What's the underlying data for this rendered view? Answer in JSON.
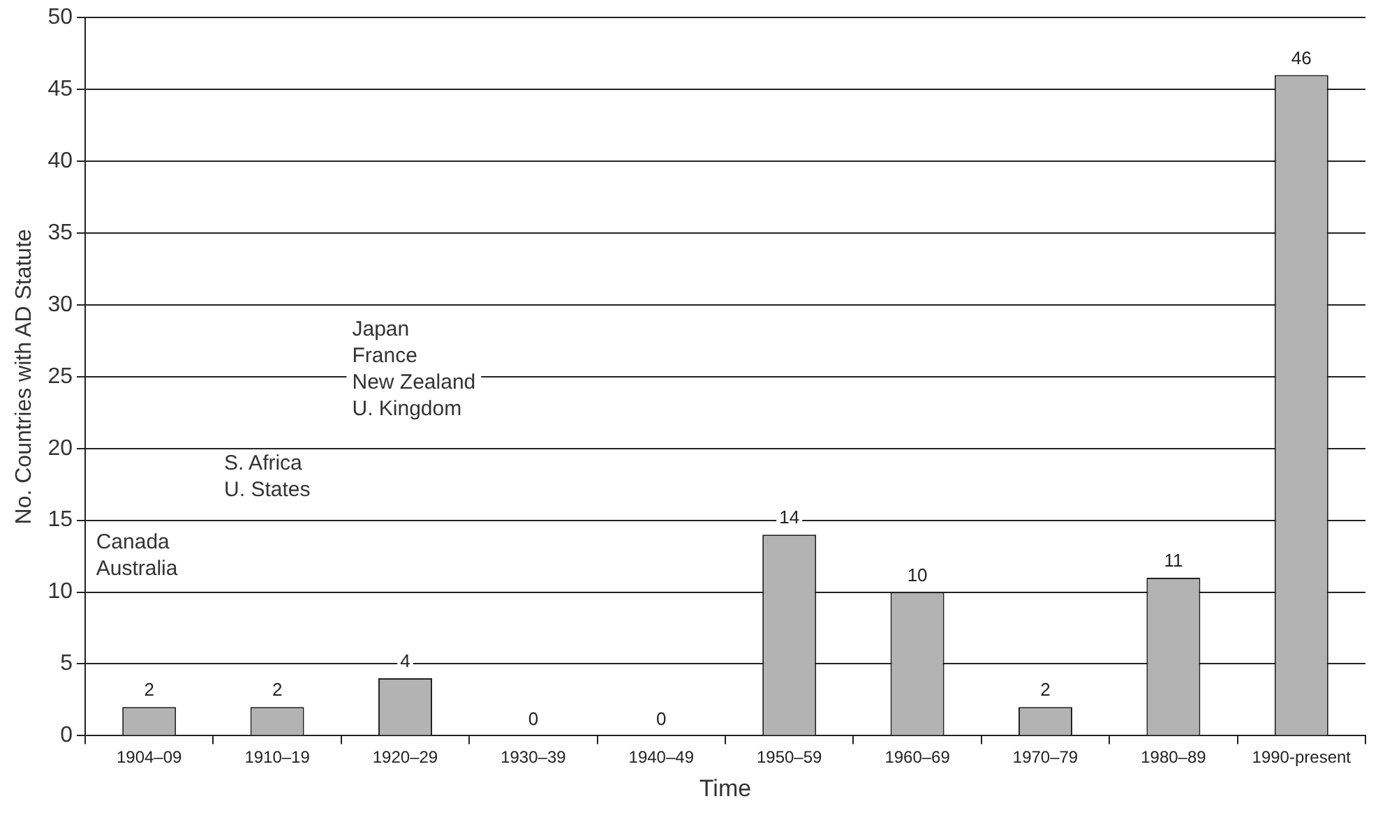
{
  "chart_data": {
    "type": "bar",
    "xlabel": "Time",
    "ylabel": "No. Countries with AD Statute",
    "categories": [
      "1904–09",
      "1910–19",
      "1920–29",
      "1930–39",
      "1940–49",
      "1950–59",
      "1960–69",
      "1970–79",
      "1980–89",
      "1990-present"
    ],
    "values": [
      2,
      2,
      4,
      0,
      0,
      14,
      10,
      2,
      11,
      46
    ],
    "color": "#b3b3b3",
    "ylim": [
      0,
      50
    ],
    "yticks": [
      0,
      5,
      10,
      15,
      20,
      25,
      30,
      35,
      40,
      45,
      50
    ],
    "grid": "y",
    "data_labels": true,
    "annotations": [
      "Canada\nAustralia",
      "S. Africa\nU. States",
      "Japan\nFrance\nNew Zealand\nU. Kingdom"
    ]
  }
}
